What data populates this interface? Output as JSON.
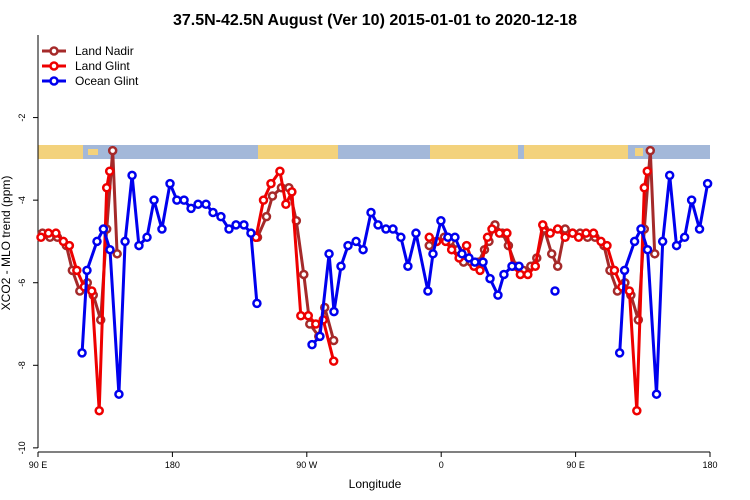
{
  "chart_data": {
    "type": "line",
    "title": "37.5N-42.5N August (Ver 10)   2015-01-01 to 2020-12-18",
    "x_label": "Longitude",
    "y_label": "XCO2 - MLO trend (ppm)",
    "xlim": [
      90,
      540
    ],
    "ylim": [
      -10.1,
      0
    ],
    "xticks": [
      {
        "value": 90,
        "label": "90 E"
      },
      {
        "value": 180,
        "label": "180"
      },
      {
        "value": 270,
        "label": "90 W"
      },
      {
        "value": 360,
        "label": "0"
      },
      {
        "value": 450,
        "label": "90 E"
      },
      {
        "value": 540,
        "label": "180"
      }
    ],
    "yticks": [
      -10,
      -8,
      -6,
      -4,
      -2
    ],
    "legend": "top-left",
    "series": [
      {
        "name": "Land Nadir",
        "color": "#a52a2a",
        "x": [
          93,
          98,
          103,
          109,
          113,
          118,
          123,
          127,
          132,
          136,
          140,
          143,
          null,
          237,
          243,
          247,
          253,
          258,
          263,
          268,
          272,
          278,
          282,
          288,
          null,
          352,
          357,
          362,
          366,
          371,
          375,
          380,
          385,
          389,
          392,
          396,
          401,
          405,
          410,
          415,
          420,
          424,
          429,
          434,
          438,
          443,
          448,
          453,
          458,
          463,
          469,
          473,
          478,
          483,
          487,
          492,
          496,
          500,
          503
        ],
        "values": [
          -4.8,
          -4.9,
          -4.9,
          -5.1,
          -5.7,
          -6.2,
          -6.0,
          -6.3,
          -6.9,
          -4.7,
          -2.8,
          -5.3,
          null,
          -4.9,
          -4.4,
          -3.9,
          -3.7,
          -3.7,
          -4.5,
          -5.8,
          -7.0,
          -7.3,
          -6.6,
          -7.4,
          null,
          -5.1,
          -5.0,
          -4.9,
          -5.0,
          -5.2,
          -5.5,
          -5.5,
          -5.5,
          -5.2,
          -5.0,
          -4.6,
          -4.8,
          -5.1,
          -5.6,
          -5.7,
          -5.6,
          -5.4,
          -4.7,
          -5.3,
          -5.6,
          -4.7,
          -4.8,
          -4.8,
          -4.9,
          -4.9,
          -5.1,
          -5.7,
          -6.2,
          -6.0,
          -6.3,
          -6.9,
          -4.7,
          -2.8,
          -5.3
        ]
      },
      {
        "name": "Land Glint",
        "color": "#ee0000",
        "x": [
          92,
          97,
          102,
          107,
          111,
          116,
          121,
          126,
          131,
          136,
          138,
          null,
          236,
          241,
          246,
          252,
          256,
          260,
          266,
          271,
          276,
          281,
          288,
          null,
          352,
          357,
          363,
          367,
          372,
          377,
          382,
          386,
          391,
          394,
          399,
          404,
          408,
          413,
          418,
          423,
          428,
          433,
          438,
          443,
          448,
          452,
          457,
          462,
          467,
          471,
          476,
          481,
          486,
          491,
          496,
          498
        ],
        "values": [
          -4.9,
          -4.8,
          -4.8,
          -5.0,
          -5.1,
          -5.7,
          -6.1,
          -6.2,
          -9.1,
          -3.7,
          -3.3,
          null,
          -4.9,
          -4.0,
          -3.6,
          -3.3,
          -4.1,
          -3.8,
          -6.8,
          -6.8,
          -7.0,
          -6.9,
          -7.9,
          null,
          -4.9,
          -5.0,
          -5.0,
          -5.2,
          -5.4,
          -5.1,
          -5.6,
          -5.7,
          -4.9,
          -4.7,
          -4.8,
          -4.8,
          -5.6,
          -5.8,
          -5.8,
          -5.6,
          -4.6,
          -4.8,
          -4.7,
          -4.9,
          -4.8,
          -4.9,
          -4.8,
          -4.8,
          -5.0,
          -5.1,
          -5.7,
          -6.1,
          -6.2,
          -9.1,
          -3.7,
          -3.3
        ]
      },
      {
        "name": "Ocean Glint",
        "color": "#0000ee",
        "x": [
          119.5,
          122.8,
          129.5,
          133.8,
          138.2,
          144.2,
          148.3,
          153,
          157.6,
          163,
          167.7,
          173,
          178.4,
          183,
          187.8,
          192.5,
          197.2,
          202.5,
          207.2,
          212.5,
          217.9,
          222.6,
          227.9,
          232.6,
          236.6,
          null,
          273.5,
          278.8,
          284.9,
          288.2,
          292.9,
          297.6,
          303,
          307.7,
          313,
          317.7,
          323,
          327.7,
          333,
          337.7,
          343.1,
          351.1,
          354.5,
          359.8,
          364.5,
          369.2,
          373.9,
          378.6,
          382.6,
          388,
          392.7,
          398,
          402,
          407.4,
          412.1,
          null,
          436.2,
          null,
          479.5,
          482.8,
          489.5,
          493.8,
          498.2,
          504.2,
          508.3,
          513,
          517.6,
          523,
          527.7,
          533,
          538.4
        ],
        "values": [
          -7.7,
          -5.7,
          -5.0,
          -4.7,
          -5.2,
          -8.7,
          -5.0,
          -3.4,
          -5.1,
          -4.9,
          -4.0,
          -4.7,
          -3.6,
          -4.0,
          -4.0,
          -4.2,
          -4.1,
          -4.1,
          -4.3,
          -4.4,
          -4.7,
          -4.6,
          -4.6,
          -4.8,
          -6.5,
          null,
          -7.5,
          -7.3,
          -5.3,
          -6.7,
          -5.6,
          -5.1,
          -5.0,
          -5.2,
          -4.3,
          -4.6,
          -4.7,
          -4.7,
          -4.9,
          -5.6,
          -4.8,
          -6.2,
          -5.3,
          -4.5,
          -4.9,
          -4.9,
          -5.3,
          -5.4,
          -5.5,
          -5.5,
          -5.9,
          -6.3,
          -5.8,
          -5.6,
          -5.6,
          null,
          -6.2,
          null,
          -7.7,
          -5.7,
          -5.0,
          -4.7,
          -5.2,
          -8.7,
          -5.0,
          -3.4,
          -5.1,
          -4.9,
          -4.0,
          -4.7,
          -3.6
        ]
      }
    ]
  }
}
